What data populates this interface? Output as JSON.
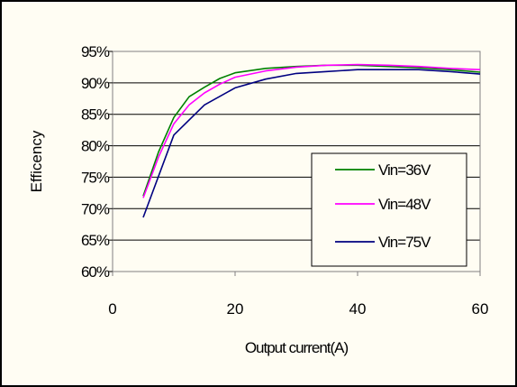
{
  "chart_data": {
    "type": "line",
    "title": "",
    "xlabel": "Output current(A)",
    "ylabel": "Efficency",
    "xlim": [
      0,
      60
    ],
    "ylim": [
      60,
      95
    ],
    "x_ticks": [
      0,
      20,
      40,
      60
    ],
    "x_tick_labels": [
      "0",
      "20",
      "40",
      "60"
    ],
    "y_ticks": [
      60,
      65,
      70,
      75,
      80,
      85,
      90,
      95
    ],
    "y_tick_labels": [
      "60%",
      "65%",
      "70%",
      "75%",
      "80%",
      "85%",
      "90%",
      "95%"
    ],
    "grid": "horizontal",
    "legend_position": "bottom-right",
    "series": [
      {
        "name": "Vin=36V",
        "color": "#008000",
        "points": [
          [
            5,
            72
          ],
          [
            7.5,
            79
          ],
          [
            10,
            84.5
          ],
          [
            12.5,
            87.8
          ],
          [
            15,
            89.3
          ],
          [
            17.5,
            90.7
          ],
          [
            20,
            91.6
          ],
          [
            25,
            92.3
          ],
          [
            30,
            92.6
          ],
          [
            35,
            92.8
          ],
          [
            40,
            92.8
          ],
          [
            45,
            92.6
          ],
          [
            50,
            92.4
          ],
          [
            55,
            92.1
          ],
          [
            60,
            91.7
          ]
        ]
      },
      {
        "name": "Vin=48V",
        "color": "#ff00ff",
        "points": [
          [
            5,
            71.7
          ],
          [
            7.5,
            78.2
          ],
          [
            10,
            83.5
          ],
          [
            12.5,
            86.5
          ],
          [
            15,
            88.4
          ],
          [
            17.5,
            89.8
          ],
          [
            20,
            90.9
          ],
          [
            25,
            91.9
          ],
          [
            30,
            92.5
          ],
          [
            35,
            92.8
          ],
          [
            40,
            92.9
          ],
          [
            45,
            92.8
          ],
          [
            50,
            92.6
          ],
          [
            55,
            92.3
          ],
          [
            60,
            92.1
          ]
        ]
      },
      {
        "name": "Vin=75V",
        "color": "#000080",
        "points": [
          [
            5,
            68.6
          ],
          [
            10,
            81.7
          ],
          [
            15,
            86.5
          ],
          [
            20,
            89.2
          ],
          [
            25,
            90.6
          ],
          [
            30,
            91.5
          ],
          [
            35,
            91.8
          ],
          [
            40,
            92.1
          ],
          [
            45,
            92.1
          ],
          [
            50,
            92.1
          ],
          [
            55,
            91.8
          ],
          [
            60,
            91.4
          ]
        ]
      }
    ]
  }
}
